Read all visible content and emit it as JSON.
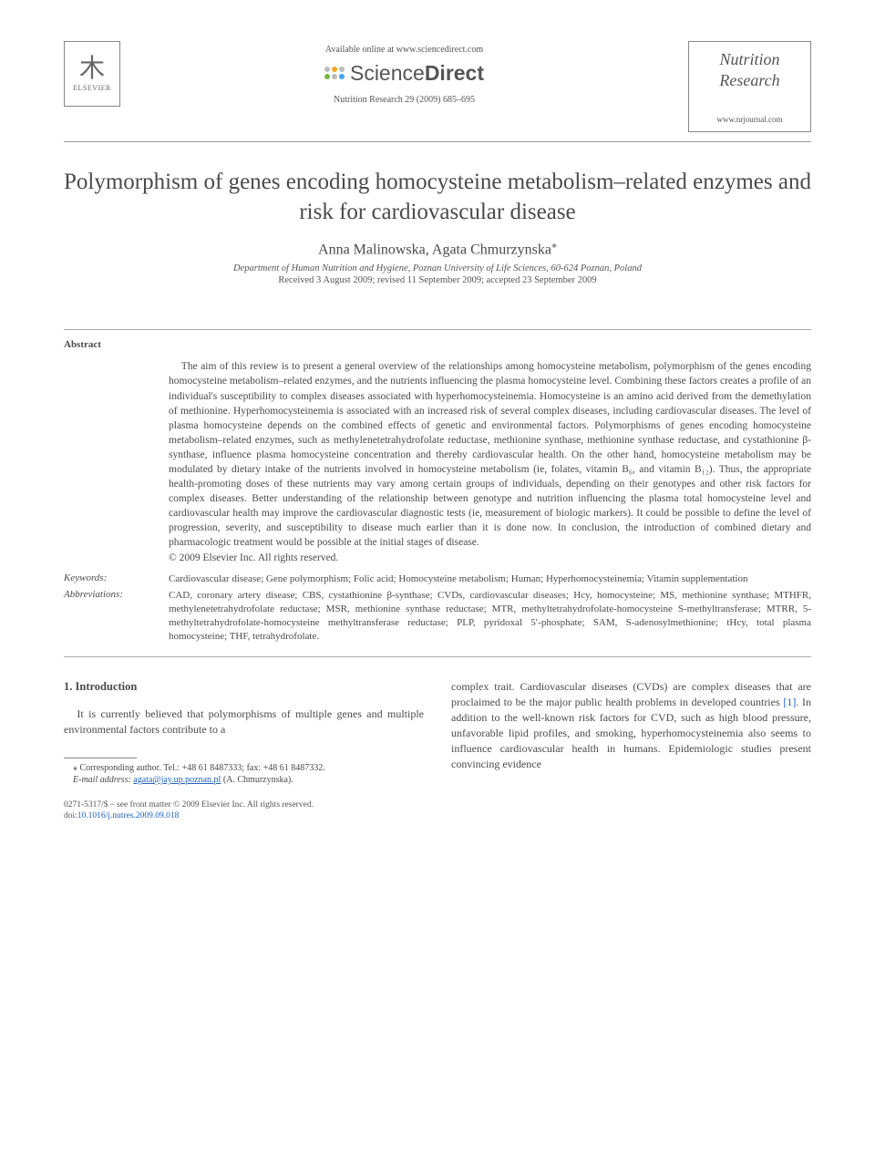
{
  "header": {
    "publisher_label": "ELSEVIER",
    "available_text": "Available online at www.sciencedirect.com",
    "sd_brand_part1": "Science",
    "sd_brand_part2": "Direct",
    "citation": "Nutrition Research 29 (2009) 685–695",
    "journal_name_line1": "Nutrition",
    "journal_name_line2": "Research",
    "journal_url": "www.nrjournal.com"
  },
  "title": "Polymorphism of genes encoding homocysteine metabolism–related enzymes and risk for cardiovascular disease",
  "authors": "Anna Malinowska, Agata Chmurzynska",
  "corresponding_marker": "⁎",
  "affiliation": "Department of Human Nutrition and Hygiene, Poznan University of Life Sciences, 60-624 Poznan, Poland",
  "dates": "Received 3 August 2009; revised 11 September 2009; accepted 23 September 2009",
  "abstract": {
    "label": "Abstract",
    "text": "The aim of this review is to present a general overview of the relationships among homocysteine metabolism, polymorphism of the genes encoding homocysteine metabolism–related enzymes, and the nutrients influencing the plasma homocysteine level. Combining these factors creates a profile of an individual's susceptibility to complex diseases associated with hyperhomocysteinemia. Homocysteine is an amino acid derived from the demethylation of methionine. Hyperhomocysteinemia is associated with an increased risk of several complex diseases, including cardiovascular diseases. The level of plasma homocysteine depends on the combined effects of genetic and environmental factors. Polymorphisms of genes encoding homocysteine metabolism–related enzymes, such as methylenetetrahydrofolate reductase, methionine synthase, methionine synthase reductase, and cystathionine β-synthase, influence plasma homocysteine concentration and thereby cardiovascular health. On the other hand, homocysteine metabolism may be modulated by dietary intake of the nutrients involved in homocysteine metabolism (ie, folates, vitamin B₆, and vitamin B₁₂). Thus, the appropriate health-promoting doses of these nutrients may vary among certain groups of individuals, depending on their genotypes and other risk factors for complex diseases. Better understanding of the relationship between genotype and nutrition influencing the plasma total homocysteine level and cardiovascular health may improve the cardiovascular diagnostic tests (ie, measurement of biologic markers). It could be possible to define the level of progression, severity, and susceptibility to disease much earlier than it is done now. In conclusion, the introduction of combined dietary and pharmacologic treatment would be possible at the initial stages of disease.",
    "copyright": "© 2009 Elsevier Inc. All rights reserved."
  },
  "keywords": {
    "label": "Keywords:",
    "text": "Cardiovascular disease; Gene polymorphism; Folic acid; Homocysteine metabolism; Human; Hyperhomocysteinemia; Vitamin supplementation"
  },
  "abbreviations": {
    "label": "Abbreviations:",
    "text": "CAD, coronary artery disease; CBS, cystathionine β-synthase; CVDs, cardiovascular diseases; Hcy, homocysteine; MS, methionine synthase; MTHFR, methylenetetrahydrofolate reductase; MSR, methionine synthase reductase; MTR, methyltetrahydrofolate-homocysteine S-methyltransferase; MTRR, 5-methyltetrahydrofolate-homocysteine methyltransferase reductase; PLP, pyridoxal 5′-phosphate; SAM, S-adenosylmethionine; tHcy, total plasma homocysteine; THF, tetrahydrofolate."
  },
  "body": {
    "section_head": "1. Introduction",
    "col1": "It is currently believed that polymorphisms of multiple genes and multiple environmental factors contribute to a",
    "col2_part1": "complex trait. Cardiovascular diseases (CVDs) are complex diseases that are proclaimed to be the major public health problems in developed countries ",
    "col2_ref": "[1]",
    "col2_part2": ". In addition to the well-known risk factors for CVD, such as high blood pressure, unfavorable lipid profiles, and smoking, hyperhomocysteinemia also seems to influence cardiovascular health in humans. Epidemiologic studies present convincing evidence"
  },
  "footnote": {
    "line1": "⁎ Corresponding author. Tel.: +48 61 8487333; fax: +48 61 8487332.",
    "email_label": "E-mail address:",
    "email": "agata@jay.up.poznan.pl",
    "email_tail": " (A. Chmurzynska)."
  },
  "footer": {
    "issn_line": "0271-5317/$ – see front matter © 2009 Elsevier Inc. All rights reserved.",
    "doi_label": "doi:",
    "doi": "10.1016/j.nutres.2009.09.018"
  },
  "colors": {
    "text": "#4a4a4a",
    "link": "#2060c0",
    "rule": "#999999"
  }
}
